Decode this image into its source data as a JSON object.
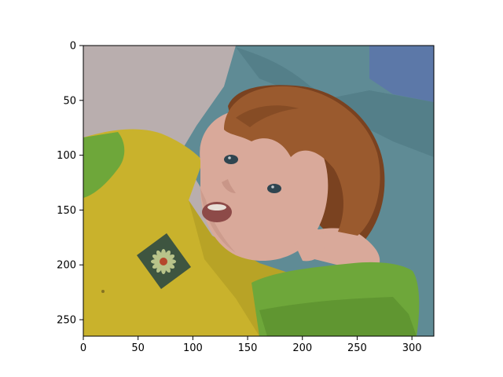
{
  "figure": {
    "type": "image-axes",
    "subject": "photo-of-child-lying-on-blue-pillow"
  },
  "axes": {
    "x_ticks": [
      "0",
      "50",
      "100",
      "150",
      "200",
      "250",
      "300"
    ],
    "y_ticks": [
      "0",
      "50",
      "100",
      "150",
      "200",
      "250"
    ],
    "xlim": [
      0,
      320
    ],
    "ylim": [
      265,
      0
    ]
  },
  "palette": {
    "wall": "#b9aeae",
    "pillow": "#5f8b95",
    "pillow_dark": "#4a7680",
    "pillow_blue": "#5c78a8",
    "shirt_yellow": "#c9b22c",
    "shirt_yellow_shade": "#a8931f",
    "sleeve_green": "#6ea73a",
    "sleeve_green_dark": "#568a2b",
    "skin": "#d9a99a",
    "skin_shadow": "#c28f80",
    "hair": "#9a5a2e",
    "hair_dark": "#7a4220",
    "patch": "#3e5540",
    "flower_petal": "#b8c48a",
    "flower_center": "#b5482c",
    "eye": "#2f4550",
    "mouth": "#8d4a48"
  }
}
